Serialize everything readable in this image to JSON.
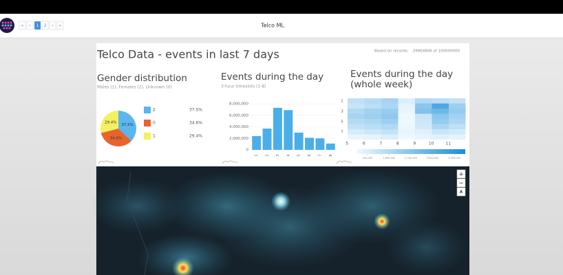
{
  "nav": {
    "pager": [
      "«",
      "‹",
      "1",
      "2",
      "›",
      "»"
    ],
    "title": "Telco ML"
  },
  "header": {
    "title": "Telco Data - events in last 7 days",
    "records_label": "Based on records:",
    "records_value": "29904806 of 100000000"
  },
  "chart_data": [
    {
      "type": "pie",
      "title": "Gender distribution",
      "subtitle": "Males (1), Females (2), Unknown (0)",
      "categories": [
        "2",
        "0",
        "1"
      ],
      "values": [
        37.5,
        34.6,
        29.4
      ],
      "value_labels": [
        "37.5%",
        "34.6%",
        "29.4%"
      ],
      "colors": [
        "#5ab6ee",
        "#e8642e",
        "#f4f15e"
      ]
    },
    {
      "type": "bar",
      "title": "Events during the day",
      "subtitle": "3-hour timeslots (1-8)",
      "categories": [
        "1",
        "2",
        "3",
        "4",
        "5",
        "6",
        "7",
        "8"
      ],
      "values": [
        2400000,
        3700000,
        7300000,
        6900000,
        3000000,
        2100000,
        2000000,
        1100000
      ],
      "color": "#4aaee9",
      "ylim": [
        0,
        8000000
      ],
      "yticks": [
        0,
        {
          "value": 2000000,
          "label": "2,000,000"
        },
        {
          "value": 4000000,
          "label": "4,000,000"
        },
        {
          "value": 6000000,
          "label": "6,000,000"
        },
        {
          "value": 8000000,
          "label": "8,000,000"
        }
      ]
    },
    {
      "type": "heatmap",
      "title": "Events during the day (whole week)",
      "x": [
        5,
        6,
        7,
        8,
        9,
        10,
        11
      ],
      "y": [
        1,
        null,
        3,
        null,
        5,
        null,
        7,
        null
      ],
      "values": [
        [
          1500000,
          1700000,
          2000000,
          900000,
          1800000,
          1600000,
          1400000
        ],
        [
          1300000,
          1600000,
          1900000,
          700000,
          2600000,
          3900000,
          2200000
        ],
        [
          1800000,
          2100000,
          2300000,
          600000,
          2800000,
          3200000,
          2400000
        ],
        [
          2000000,
          2200000,
          2500000,
          500000,
          1300000,
          2600000,
          2100000
        ],
        [
          1700000,
          1900000,
          2200000,
          500000,
          1200000,
          2400000,
          1900000
        ],
        [
          1400000,
          1600000,
          1800000,
          550000,
          1100000,
          1900000,
          1500000
        ],
        [
          1000000,
          1200000,
          1400000,
          600000,
          800000,
          1300000,
          1100000
        ],
        [
          600000,
          700000,
          900000,
          500000,
          600000,
          800000,
          700000
        ]
      ],
      "clim": [
        450000,
        4950000
      ],
      "cticks": [
        {
          "value": 900000,
          "label": "900,000"
        },
        {
          "value": 1800000,
          "label": "1,800,000"
        },
        {
          "value": 2700000,
          "label": "2,700,000"
        },
        {
          "value": 3600000,
          "label": "3,600,000"
        },
        {
          "value": 4500000,
          "label": "4,500,000"
        }
      ],
      "colors": [
        "#f0f9ff",
        "#1c8ed8"
      ]
    }
  ],
  "map": {
    "controls": [
      "+",
      "−"
    ]
  }
}
